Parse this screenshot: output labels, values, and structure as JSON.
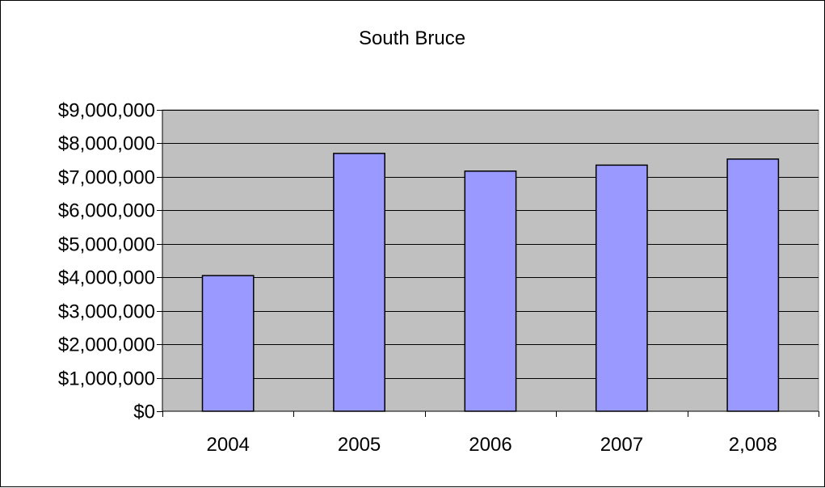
{
  "chart_data": {
    "type": "bar",
    "title": "South Bruce",
    "xlabel": "",
    "ylabel": "",
    "categories": [
      "2004",
      "2005",
      "2006",
      "2007",
      "2,008"
    ],
    "values": [
      4050000,
      7700000,
      7170000,
      7350000,
      7530000
    ],
    "ylim": [
      0,
      9000000
    ],
    "yticks": [
      0,
      1000000,
      2000000,
      3000000,
      4000000,
      5000000,
      6000000,
      7000000,
      8000000,
      9000000
    ],
    "ytick_labels": [
      "$0",
      "$1,000,000",
      "$2,000,000",
      "$3,000,000",
      "$4,000,000",
      "$5,000,000",
      "$6,000,000",
      "$7,000,000",
      "$8,000,000",
      "$9,000,000"
    ],
    "grid": true,
    "legend": "none",
    "colors": {
      "bar_fill": "#9999ff",
      "bar_stroke": "#000000",
      "plot_background": "#c0c0c0",
      "gridline": "#000000"
    }
  }
}
